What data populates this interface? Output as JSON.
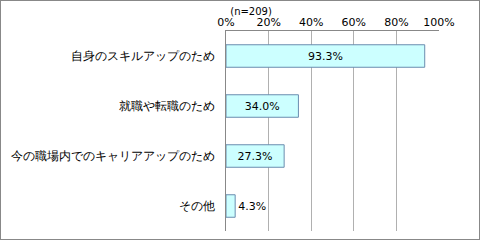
{
  "chart_data": {
    "type": "bar",
    "orientation": "horizontal",
    "title": "(n=209)",
    "categories": [
      "自身のスキルアップのため",
      "就職や転職のため",
      "今の職場内でのキャリアアップのため",
      "その他"
    ],
    "values": [
      93.3,
      34.0,
      27.3,
      4.3
    ],
    "value_labels": [
      "93.3%",
      "34.0%",
      "27.3%",
      "4.3%"
    ],
    "data_labels": true,
    "color": "#ccffff",
    "xlim": [
      0,
      100
    ],
    "xticks": [
      {
        "value": 0,
        "label": "0%"
      },
      {
        "value": 20,
        "label": "20%"
      },
      {
        "value": 40,
        "label": "40%"
      },
      {
        "value": 60,
        "label": "60%"
      },
      {
        "value": 80,
        "label": "80%"
      },
      {
        "value": 100,
        "label": "100%"
      }
    ],
    "grid": true
  }
}
